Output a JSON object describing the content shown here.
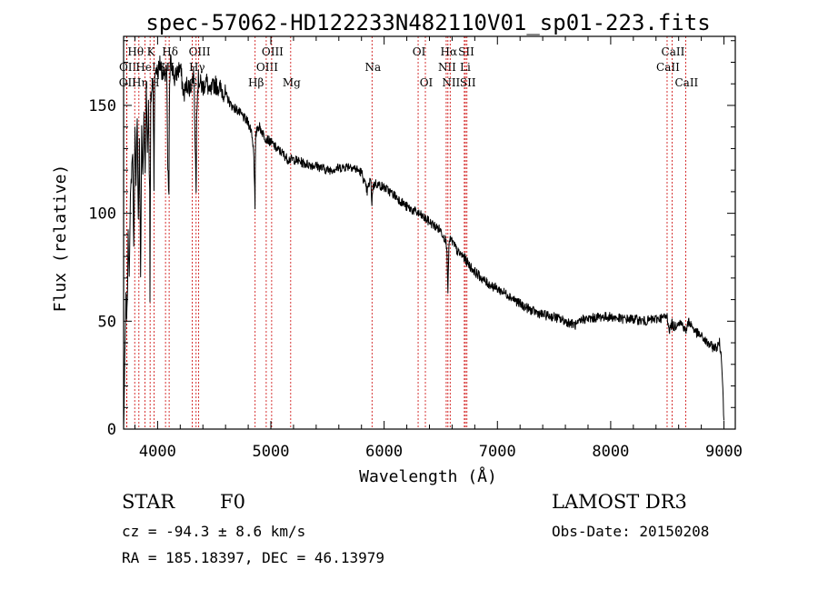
{
  "chart_data": {
    "type": "line",
    "title": "spec-57062-HD122233N482110V01_sp01-223.fits",
    "xlabel": "Wavelength (Å)",
    "ylabel": "Flux (relative)",
    "xlim": [
      3700,
      9100
    ],
    "ylim": [
      0,
      182
    ],
    "xticks": [
      4000,
      5000,
      6000,
      7000,
      8000,
      9000
    ],
    "yticks": [
      0,
      50,
      100,
      150
    ],
    "series": [
      {
        "name": "flux",
        "x": [
          3700,
          3710,
          3720,
          3730,
          3740,
          3750,
          3760,
          3770,
          3780,
          3790,
          3800,
          3810,
          3820,
          3830,
          3840,
          3850,
          3860,
          3870,
          3880,
          3890,
          3900,
          3910,
          3920,
          3930,
          3933,
          3936,
          3940,
          3950,
          3960,
          3968,
          3975,
          3985,
          4000,
          4020,
          4040,
          4060,
          4080,
          4090,
          4100,
          4102,
          4106,
          4115,
          4130,
          4150,
          4170,
          4200,
          4230,
          4260,
          4290,
          4320,
          4335,
          4340,
          4345,
          4360,
          4380,
          4400,
          4430,
          4460,
          4500,
          4550,
          4600,
          4650,
          4700,
          4750,
          4800,
          4830,
          4850,
          4860,
          4862,
          4866,
          4880,
          4900,
          4950,
          5000,
          5050,
          5100,
          5150,
          5200,
          5300,
          5400,
          5500,
          5600,
          5700,
          5800,
          5850,
          5880,
          5892,
          5900,
          5920,
          6000,
          6100,
          6200,
          6300,
          6400,
          6500,
          6540,
          6555,
          6563,
          6572,
          6590,
          6650,
          6700,
          6750,
          6800,
          6900,
          7000,
          7100,
          7200,
          7300,
          7400,
          7500,
          7600,
          7700,
          7750,
          7800,
          7900,
          8000,
          8100,
          8200,
          8300,
          8400,
          8498,
          8520,
          8542,
          8560,
          8600,
          8640,
          8662,
          8690,
          8750,
          8800,
          8850,
          8900,
          8940,
          8960,
          8980,
          8990,
          9000
        ],
        "values": [
          0,
          28,
          60,
          52,
          88,
          75,
          105,
          118,
          130,
          82,
          138,
          110,
          148,
          96,
          132,
          70,
          140,
          115,
          145,
          118,
          160,
          130,
          150,
          108,
          58,
          105,
          152,
          158,
          162,
          115,
          160,
          168,
          165,
          170,
          166,
          162,
          167,
          120,
          108,
          128,
          160,
          170,
          168,
          162,
          165,
          168,
          155,
          160,
          158,
          165,
          125,
          108,
          150,
          162,
          160,
          158,
          162,
          155,
          160,
          158,
          155,
          150,
          148,
          145,
          142,
          138,
          128,
          102,
          118,
          135,
          140,
          140,
          135,
          133,
          130,
          128,
          125,
          125,
          123,
          122,
          120,
          121,
          122,
          119,
          110,
          116,
          105,
          112,
          114,
          112,
          108,
          103,
          100,
          96,
          92,
          88,
          84,
          62,
          86,
          88,
          82,
          80,
          76,
          73,
          68,
          65,
          62,
          58,
          55,
          53,
          52,
          50,
          48,
          51,
          51,
          52,
          52,
          51,
          51,
          50,
          51,
          52,
          46,
          49,
          47,
          50,
          48,
          45,
          50,
          45,
          43,
          40,
          38,
          38,
          40,
          32,
          18,
          4
        ]
      }
    ],
    "spectral_lines": [
      {
        "label": "OII",
        "wavelength": 3727,
        "row": 2
      },
      {
        "label": "OII",
        "wavelength": 3729,
        "row": 1
      },
      {
        "label": "Hθ",
        "wavelength": 3798,
        "row": 0
      },
      {
        "label": "Hη",
        "wavelength": 3835,
        "row": 2
      },
      {
        "label": "HeI",
        "wavelength": 3889,
        "row": 1
      },
      {
        "label": "K",
        "wavelength": 3934,
        "row": 0
      },
      {
        "label": "H",
        "wavelength": 3968,
        "row": 2
      },
      {
        "label": "SII",
        "wavelength": 4070,
        "row": 1
      },
      {
        "label": "Hδ",
        "wavelength": 4102,
        "row": 0
      },
      {
        "label": "G",
        "wavelength": 4305,
        "row": 2
      },
      {
        "label": "OIII",
        "wavelength": 4363,
        "row": 0
      },
      {
        "label": "Hγ",
        "wavelength": 4340,
        "row": 1
      },
      {
        "label": "Hβ",
        "wavelength": 4861,
        "row": 2
      },
      {
        "label": "OIII",
        "wavelength": 4959,
        "row": 1
      },
      {
        "label": "OIII",
        "wavelength": 5007,
        "row": 0
      },
      {
        "label": "Mg",
        "wavelength": 5175,
        "row": 2
      },
      {
        "label": "Na",
        "wavelength": 5893,
        "row": 1
      },
      {
        "label": "OI",
        "wavelength": 6300,
        "row": 0
      },
      {
        "label": "OI",
        "wavelength": 6364,
        "row": 2
      },
      {
        "label": "NII",
        "wavelength": 6548,
        "row": 1
      },
      {
        "label": "NII",
        "wavelength": 6583,
        "row": 2
      },
      {
        "label": "Hα",
        "wavelength": 6563,
        "row": 0
      },
      {
        "label": "SII",
        "wavelength": 6717,
        "row": 0
      },
      {
        "label": "Li",
        "wavelength": 6708,
        "row": 1
      },
      {
        "label": "SII",
        "wavelength": 6731,
        "row": 2
      },
      {
        "label": "CaII",
        "wavelength": 8498,
        "row": 1
      },
      {
        "label": "CaII",
        "wavelength": 8542,
        "row": 0
      },
      {
        "label": "CaII",
        "wavelength": 8662,
        "row": 2
      }
    ],
    "line_marker_color": "#cc0000",
    "curve_color": "#000000"
  },
  "info": {
    "object_class": "STAR",
    "subclass": "F0",
    "survey": "LAMOST DR3",
    "redshift": "cz = -94.3 ± 8.6 km/s",
    "obs_date": "Obs-Date: 20150208",
    "coords": "RA = 185.18397, DEC =  46.13979"
  }
}
